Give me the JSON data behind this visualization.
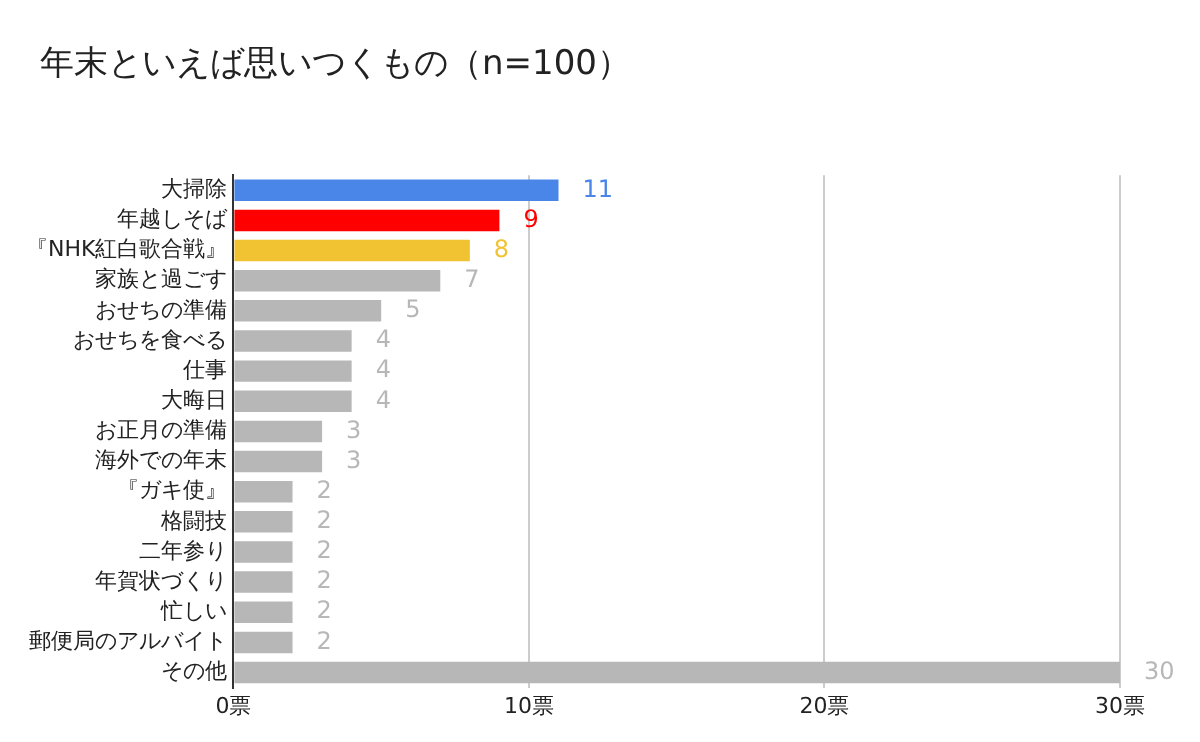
{
  "chart_data": {
    "type": "bar",
    "orientation": "horizontal",
    "title": "年末といえば思いつくもの（n=100）",
    "categories": [
      "大掃除",
      "年越しそば",
      "『NHK紅白歌合戦』",
      "家族と過ごす",
      "おせちの準備",
      "おせちを食べる",
      "仕事",
      "大晦日",
      "お正月の準備",
      "海外での年末",
      "『ガキ使』",
      "格闘技",
      "二年参り",
      "年賀状づくり",
      "忙しい",
      "郵便局のアルバイト",
      "その他"
    ],
    "values": [
      11,
      9,
      8,
      7,
      5,
      4,
      4,
      4,
      3,
      3,
      2,
      2,
      2,
      2,
      2,
      2,
      30
    ],
    "colors": [
      "#4a86e8",
      "#ff0000",
      "#f1c232",
      "#b7b7b7",
      "#b7b7b7",
      "#b7b7b7",
      "#b7b7b7",
      "#b7b7b7",
      "#b7b7b7",
      "#b7b7b7",
      "#b7b7b7",
      "#b7b7b7",
      "#b7b7b7",
      "#b7b7b7",
      "#b7b7b7",
      "#b7b7b7",
      "#b7b7b7"
    ],
    "xlim": [
      0,
      30
    ],
    "xticks": [
      {
        "value": 0,
        "label": "0票"
      },
      {
        "value": 10,
        "label": "10票"
      },
      {
        "value": 20,
        "label": "20票"
      },
      {
        "value": 30,
        "label": "30票"
      }
    ],
    "grid": "x",
    "legend": false,
    "data_labels": true
  }
}
